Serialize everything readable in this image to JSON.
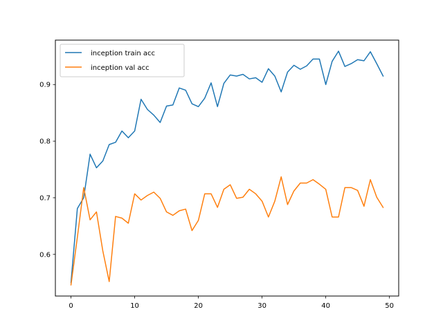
{
  "chart_data": {
    "type": "line",
    "title": "",
    "xlabel": "",
    "ylabel": "",
    "xlim": [
      -2.45,
      51.45
    ],
    "ylim": [
      0.5264,
      0.9785
    ],
    "x_ticks": [
      0,
      10,
      20,
      30,
      40,
      50
    ],
    "y_ticks": [
      0.6,
      0.7,
      0.8,
      0.9
    ],
    "x_tick_labels": [
      "0",
      "10",
      "20",
      "30",
      "40",
      "50"
    ],
    "y_tick_labels": [
      "0.6",
      "0.7",
      "0.8",
      "0.9"
    ],
    "grid": false,
    "legend_position": "upper-left",
    "series": [
      {
        "name": "inception train acc",
        "color": "#1f77b4",
        "x": [
          0,
          1,
          2,
          3,
          4,
          5,
          6,
          7,
          8,
          9,
          10,
          11,
          12,
          13,
          14,
          15,
          16,
          17,
          18,
          19,
          20,
          21,
          22,
          23,
          24,
          25,
          26,
          27,
          28,
          29,
          30,
          31,
          32,
          33,
          34,
          35,
          36,
          37,
          38,
          39,
          40,
          41,
          42,
          43,
          44,
          45,
          46,
          47,
          48,
          49
        ],
        "values": [
          0.55,
          0.681,
          0.7,
          0.777,
          0.753,
          0.765,
          0.794,
          0.798,
          0.818,
          0.806,
          0.818,
          0.874,
          0.856,
          0.846,
          0.833,
          0.862,
          0.864,
          0.894,
          0.89,
          0.866,
          0.861,
          0.876,
          0.903,
          0.861,
          0.902,
          0.917,
          0.915,
          0.918,
          0.91,
          0.912,
          0.904,
          0.928,
          0.915,
          0.887,
          0.922,
          0.934,
          0.927,
          0.933,
          0.945,
          0.945,
          0.9,
          0.941,
          0.959,
          0.932,
          0.937,
          0.944,
          0.942,
          0.958,
          0.937,
          0.915
        ]
      },
      {
        "name": "inception val acc",
        "color": "#ff7f0e",
        "x": [
          0,
          1,
          2,
          3,
          4,
          5,
          6,
          7,
          8,
          9,
          10,
          11,
          12,
          13,
          14,
          15,
          16,
          17,
          18,
          19,
          20,
          21,
          22,
          23,
          24,
          25,
          26,
          27,
          28,
          29,
          30,
          31,
          32,
          33,
          34,
          35,
          36,
          37,
          38,
          39,
          40,
          41,
          42,
          43,
          44,
          45,
          46,
          47,
          48,
          49
        ],
        "values": [
          0.546,
          0.63,
          0.718,
          0.661,
          0.675,
          0.606,
          0.552,
          0.667,
          0.664,
          0.655,
          0.707,
          0.696,
          0.704,
          0.71,
          0.699,
          0.675,
          0.669,
          0.677,
          0.68,
          0.642,
          0.66,
          0.707,
          0.707,
          0.683,
          0.715,
          0.723,
          0.699,
          0.701,
          0.715,
          0.707,
          0.694,
          0.666,
          0.694,
          0.737,
          0.688,
          0.712,
          0.726,
          0.726,
          0.732,
          0.724,
          0.715,
          0.666,
          0.666,
          0.718,
          0.718,
          0.713,
          0.685,
          0.732,
          0.701,
          0.683
        ]
      }
    ]
  }
}
